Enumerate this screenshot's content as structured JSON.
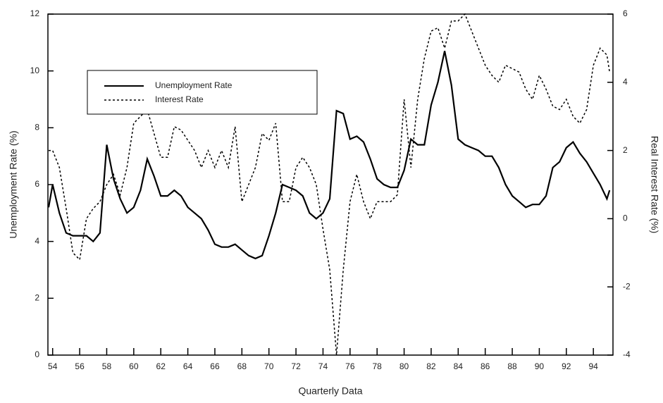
{
  "chart_data": {
    "type": "line",
    "xlabel": "Quarterly Data",
    "ylabel": "Unemployment Rate (%)",
    "y2label": "Real Interest Rate (%)",
    "x": [
      53.7,
      54.0,
      54.5,
      55.0,
      55.5,
      56.0,
      56.5,
      57.0,
      57.5,
      58.0,
      58.5,
      59.0,
      59.5,
      60.0,
      60.5,
      61.0,
      61.5,
      62.0,
      62.5,
      63.0,
      63.5,
      64.0,
      64.5,
      65.0,
      65.5,
      66.0,
      66.5,
      67.0,
      67.5,
      68.0,
      68.5,
      69.0,
      69.5,
      70.0,
      70.5,
      71.0,
      71.5,
      72.0,
      72.5,
      73.0,
      73.5,
      74.0,
      74.5,
      75.0,
      75.5,
      76.0,
      76.5,
      77.0,
      77.5,
      78.0,
      78.5,
      79.0,
      79.5,
      80.0,
      80.5,
      81.0,
      81.5,
      82.0,
      82.5,
      83.0,
      83.5,
      84.0,
      84.5,
      85.0,
      85.5,
      86.0,
      86.5,
      87.0,
      87.5,
      88.0,
      88.5,
      89.0,
      89.5,
      90.0,
      90.5,
      91.0,
      91.5,
      92.0,
      92.5,
      93.0,
      93.5,
      94.0,
      94.5,
      95.0,
      95.2
    ],
    "series": [
      {
        "name": "Unemployment Rate",
        "color": "#000000",
        "style": "solid",
        "values": [
          5.2,
          6.0,
          5.0,
          4.3,
          4.2,
          4.2,
          4.2,
          4.0,
          4.3,
          7.4,
          6.2,
          5.5,
          5.0,
          5.2,
          5.8,
          6.9,
          6.3,
          5.6,
          5.6,
          5.8,
          5.6,
          5.2,
          5.0,
          4.8,
          4.4,
          3.9,
          3.8,
          3.8,
          3.9,
          3.7,
          3.5,
          3.4,
          3.5,
          4.2,
          5.0,
          6.0,
          5.9,
          5.8,
          5.6,
          5.0,
          4.8,
          5.0,
          5.5,
          8.6,
          8.5,
          7.6,
          7.7,
          7.5,
          6.9,
          6.2,
          6.0,
          5.9,
          5.9,
          6.5,
          7.6,
          7.4,
          7.4,
          8.8,
          9.6,
          10.7,
          9.5,
          7.6,
          7.4,
          7.3,
          7.2,
          7.0,
          7.0,
          6.6,
          6.0,
          5.6,
          5.4,
          5.2,
          5.3,
          5.3,
          5.6,
          6.6,
          6.8,
          7.3,
          7.5,
          7.1,
          6.8,
          6.4,
          6.0,
          5.5,
          5.8
        ]
      },
      {
        "name": "Interest Rate",
        "color": "#000000",
        "style": "dotted",
        "axis": "y2",
        "values": [
          2.0,
          2.0,
          1.5,
          0.3,
          -1.0,
          -1.2,
          0.0,
          0.3,
          0.5,
          1.0,
          1.3,
          0.7,
          1.5,
          2.8,
          3.0,
          3.2,
          2.5,
          1.8,
          1.8,
          2.7,
          2.6,
          2.3,
          2.0,
          1.5,
          2.0,
          1.5,
          2.0,
          1.5,
          2.7,
          0.5,
          1.0,
          1.5,
          2.5,
          2.3,
          2.8,
          0.5,
          0.5,
          1.5,
          1.8,
          1.5,
          1.0,
          -0.3,
          -1.5,
          -4.0,
          -1.5,
          0.5,
          1.3,
          0.5,
          0.0,
          0.5,
          0.5,
          0.5,
          0.7,
          3.5,
          1.5,
          3.5,
          4.7,
          5.5,
          5.6,
          5.0,
          5.8,
          5.8,
          6.0,
          5.5,
          5.0,
          4.5,
          4.2,
          4.0,
          4.5,
          4.4,
          4.3,
          3.8,
          3.5,
          4.2,
          3.8,
          3.3,
          3.2,
          3.5,
          3.0,
          2.8,
          3.2,
          4.5,
          5.0,
          4.8,
          4.3
        ]
      }
    ],
    "xlim": [
      53.65,
      95.45
    ],
    "xticks": [
      54,
      56,
      58,
      60,
      62,
      64,
      66,
      68,
      70,
      72,
      74,
      76,
      78,
      80,
      82,
      84,
      86,
      88,
      90,
      92,
      94
    ],
    "ylim": [
      0,
      12
    ],
    "yticks": [
      0,
      2,
      4,
      6,
      8,
      10,
      12
    ],
    "y2lim": [
      -4,
      6
    ],
    "y2ticks": [
      -4,
      -2,
      0,
      2,
      4,
      6
    ],
    "legend": "upper left"
  }
}
